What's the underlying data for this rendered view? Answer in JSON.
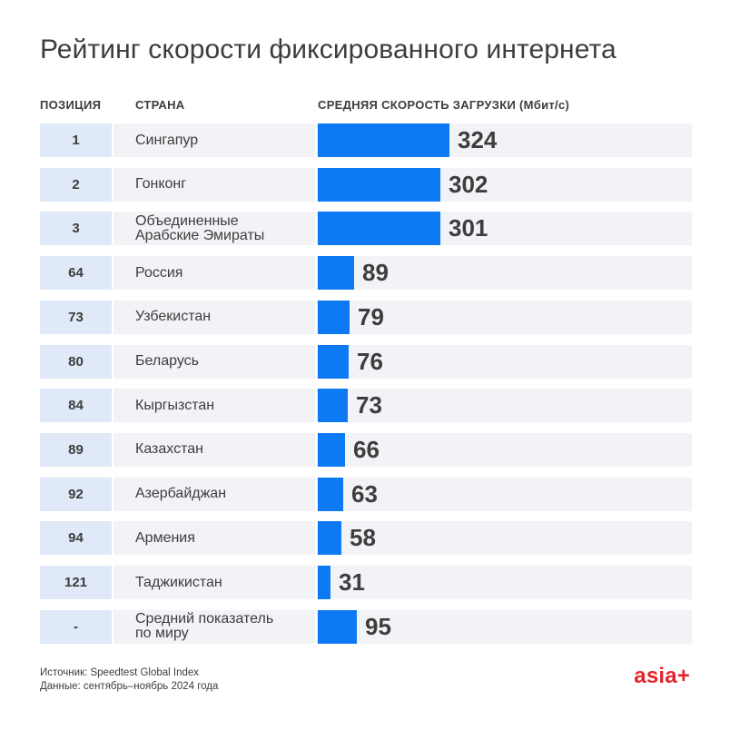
{
  "title": "Рейтинг скорости фиксированного интернета",
  "headers": {
    "position": "ПОЗИЦИЯ",
    "country": "СТРАНА",
    "speed": "СРЕДНЯЯ СКОРОСТЬ ЗАГРУЗКИ (Мбит/с)"
  },
  "chart_data": {
    "type": "bar",
    "title": "Рейтинг скорости фиксированного интернета",
    "ylabel": "СРЕДНЯЯ СКОРОСТЬ ЗАГРУЗКИ (Мбит/с)",
    "categories": [
      "Сингапур",
      "Гонконг",
      "Объединенные Арабские Эмираты",
      "Россия",
      "Узбекистан",
      "Беларусь",
      "Кыргызстан",
      "Казахстан",
      "Азербайджан",
      "Армения",
      "Таджикистан",
      "Средний показатель по миру"
    ],
    "positions": [
      "1",
      "2",
      "3",
      "64",
      "73",
      "80",
      "84",
      "89",
      "92",
      "94",
      "121",
      "-"
    ],
    "values": [
      324,
      302,
      301,
      89,
      79,
      76,
      73,
      66,
      63,
      58,
      31,
      95
    ],
    "labels": [
      "324",
      "302",
      "301",
      "89",
      "79",
      "76",
      "73",
      "66",
      "63",
      "58",
      "31",
      "95"
    ],
    "bar_color": "#0d7af4"
  },
  "rows": [
    {
      "pos": "1",
      "country": [
        "Сингапур"
      ]
    },
    {
      "pos": "2",
      "country": [
        "Гонконг"
      ]
    },
    {
      "pos": "3",
      "country": [
        "Объединенные",
        "Арабские Эмираты"
      ]
    },
    {
      "pos": "64",
      "country": [
        "Россия"
      ]
    },
    {
      "pos": "73",
      "country": [
        "Узбекистан"
      ]
    },
    {
      "pos": "80",
      "country": [
        "Беларусь"
      ]
    },
    {
      "pos": "84",
      "country": [
        "Кыргызстан"
      ]
    },
    {
      "pos": "89",
      "country": [
        "Казахстан"
      ]
    },
    {
      "pos": "92",
      "country": [
        "Азербайджан"
      ]
    },
    {
      "pos": "94",
      "country": [
        "Армения"
      ]
    },
    {
      "pos": "121",
      "country": [
        "Таджикистан"
      ]
    },
    {
      "pos": "-",
      "country": [
        "Средний показатель",
        "по миру"
      ]
    }
  ],
  "footer": {
    "source": "Источник: Speedtest Global Index",
    "period": "Данные: сентябрь–ноябрь 2024 года",
    "logo": "asia+"
  },
  "colors": {
    "accent": "#0d7af4",
    "logo": "#e3242b",
    "position_bg": "#dfe9f7",
    "row_bg": "#f1f3f6"
  }
}
